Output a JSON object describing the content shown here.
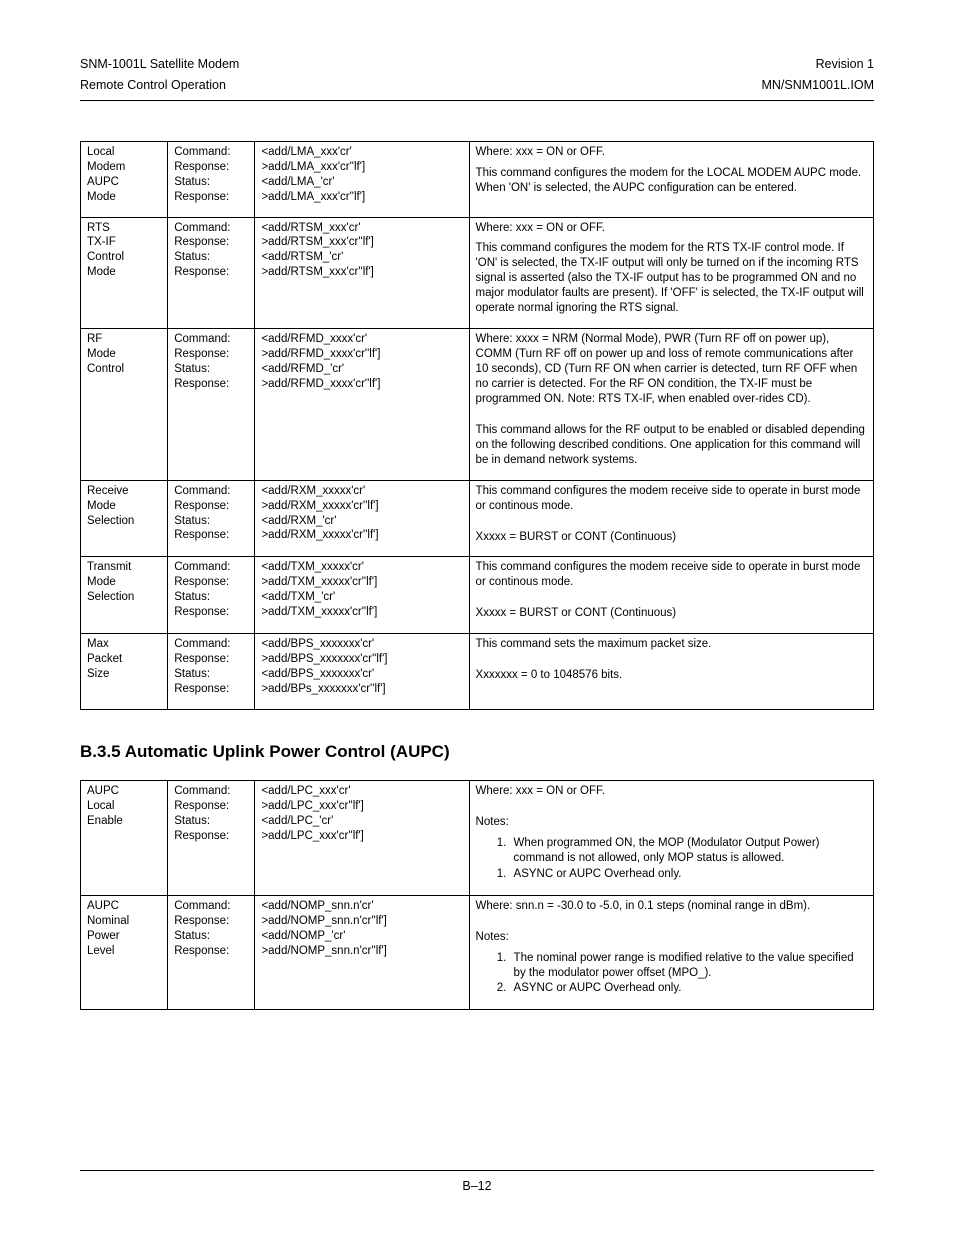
{
  "header": {
    "left1": "SNM-1001L Satellite Modem",
    "left2": "Remote Control Operation",
    "right1": "Revision 1",
    "right2": "MN/SNM1001L.IOM"
  },
  "table1": {
    "rows": [
      {
        "name": "Local Modem AUPC Mode",
        "labels": [
          "Command:",
          "Response:",
          "Status:",
          "Response:"
        ],
        "syntax": [
          "<add/LMA_xxx'cr'",
          ">add/LMA_xxx'cr''lf']",
          "<add/LMA_'cr'",
          ">add/LMA_xxx'cr''lf']"
        ],
        "desc_html": "<p>Where: xxx = ON or OFF.</p><p>This command configures the modem for the LOCAL MODEM AUPC mode. When 'ON' is selected, the AUPC configuration can be entered.</p>"
      },
      {
        "name": "RTS TX-IF Control Mode",
        "labels": [
          "Command:",
          "Response:",
          "Status:",
          "Response:"
        ],
        "syntax": [
          "<add/RTSM_xxx'cr'",
          ">add/RTSM_xxx'cr''lf']",
          "<add/RTSM_'cr'",
          ">add/RTSM_xxx'cr''lf']"
        ],
        "desc_html": "<p>Where: xxx = ON or OFF.</p><p>This command configures the modem for the RTS TX-IF control mode. If 'ON' is selected, the TX-IF output will only be turned on if the incoming RTS signal is asserted (also the TX-IF output has to be programmed ON and no major modulator faults are present). If 'OFF' is selected, the TX-IF output will operate normal ignoring the RTS signal.</p>"
      },
      {
        "name": "RF Mode Control",
        "labels": [
          "Command:",
          "Response:",
          "Status:",
          "Response:"
        ],
        "syntax": [
          "<add/RFMD_xxxx'cr'",
          ">add/RFMD_xxxx'cr''lf']",
          "<add/RFMD_'cr'",
          ">add/RFMD_xxxx'cr''lf']"
        ],
        "desc_html": "<p>Where: xxxx = NRM (Normal Mode), PWR (Turn RF off on power up), COMM (Turn RF off on power up and loss of remote communications after 10 seconds), CD (Turn RF ON when carrier is detected, turn RF OFF when no carrier is detected. For the RF ON condition, the TX-IF must be programmed ON. Note: RTS TX-IF, when enabled over-rides CD).</p><div class='para-gap'></div><p>This command allows for the RF output to be enabled or disabled depending on the following described conditions. One application for this command will be in demand network systems.</p>"
      },
      {
        "name": "Receive Mode Selection",
        "labels": [
          "Command:",
          "Response:",
          "Status:",
          "Response:"
        ],
        "syntax": [
          "<add/RXM_xxxxx'cr'",
          ">add/RXM_xxxxx'cr''lf']",
          "<add/RXM_'cr'",
          ">add/RXM_xxxxx'cr''lf']"
        ],
        "desc_html": "<p>This command configures the modem receive side to operate in burst mode or continous mode.</p><div class='para-gap'></div><p>Xxxxx = BURST or CONT (Continuous)</p>"
      },
      {
        "name": "Transmit Mode Selection",
        "labels": [
          "Command:",
          "Response:",
          "Status:",
          "Response:"
        ],
        "syntax": [
          "<add/TXM_xxxxx'cr'",
          ">add/TXM_xxxxx'cr''lf']",
          "<add/TXM_'cr'",
          ">add/TXM_xxxxx'cr''lf']"
        ],
        "desc_html": "<p>This command configures the modem receive side to operate in burst mode or continous mode.</p><div class='para-gap'></div><p>Xxxxx = BURST or CONT (Continuous)</p>"
      },
      {
        "name": "Max Packet Size",
        "labels": [
          "Command:",
          "Response:",
          "Status:",
          "Response:"
        ],
        "syntax": [
          "<add/BPS_xxxxxxx'cr'",
          ">add/BPS_xxxxxxx'cr''lf']",
          "<add/BPS_xxxxxxx'cr'",
          ">add/BPs_xxxxxxx'cr''lf']"
        ],
        "desc_html": "<p>This command sets the maximum packet size.</p><div class='para-gap'></div><p>Xxxxxxx = 0 to 1048576 bits.</p>"
      }
    ]
  },
  "section_title": "B.3.5 Automatic Uplink Power Control (AUPC)",
  "table2": {
    "rows": [
      {
        "name": "AUPC Local Enable",
        "labels": [
          "Command:",
          "Response:",
          "Status:",
          "Response:"
        ],
        "syntax": [
          "<add/LPC_xxx'cr'",
          ">add/LPC_xxx'cr''lf']",
          "<add/LPC_'cr'",
          ">add/LPC_xxx'cr''lf']"
        ],
        "desc_html": "<p>Where: xxx = ON or OFF.</p><div class='para-gap'></div><p>Notes:</p><ol class='notes'><li>When programmed ON, the MOP (Modulator Output Power) command is not allowed, only MOP status is allowed.</li><li value='1'>ASYNC or AUPC Overhead only.</li></ol>"
      },
      {
        "name": "AUPC Nominal Power Level",
        "labels": [
          "Command:",
          "Response:",
          "Status:",
          "Response:"
        ],
        "syntax": [
          "<add/NOMP_snn.n'cr'",
          ">add/NOMP_snn.n'cr''lf']",
          "<add/NOMP_'cr'",
          ">add/NOMP_snn.n'cr''lf']"
        ],
        "desc_html": "<p>Where: snn.n = -30.0 to -5.0, in 0.1 steps (nominal range in dBm).</p><div class='para-gap'></div><p>Notes:</p><ol class='notes'><li>The nominal power range is modified relative to the value specified by the modulator power offset (MPO_).</li><li>ASYNC or AUPC Overhead only.</li></ol>"
      }
    ]
  },
  "footer": {
    "page": "B–12"
  }
}
